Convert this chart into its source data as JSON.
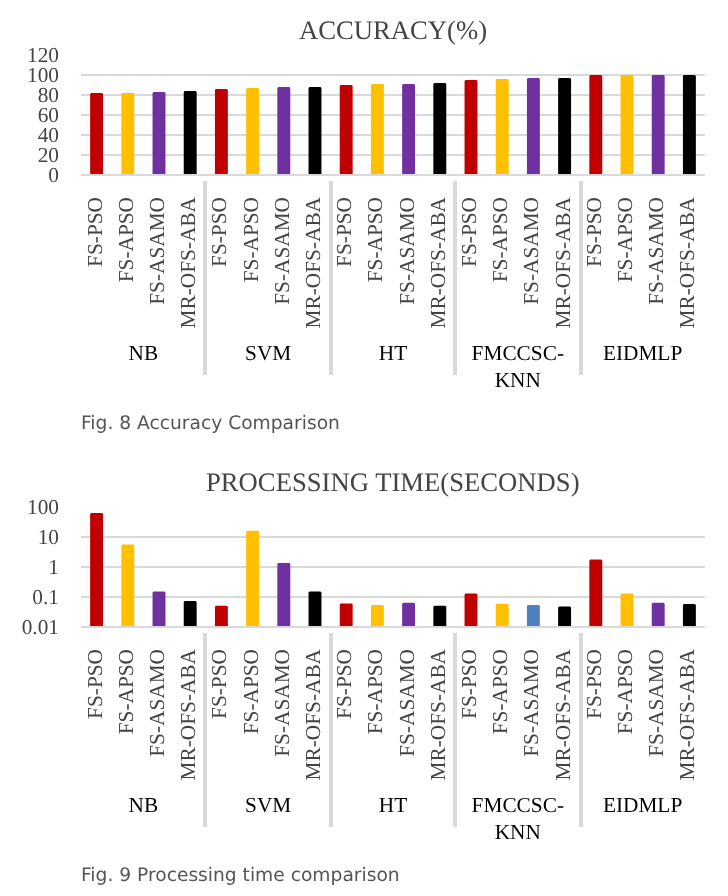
{
  "chart_data": [
    {
      "type": "bar",
      "title": "ACCURACY(%)",
      "categories": [
        "FS-PSO",
        "FS-APSO",
        "FS-ASAMO",
        "MR-OFS-ABA",
        "FS-PSO",
        "FS-APSO",
        "FS-ASAMO",
        "MR-OFS-ABA",
        "FS-PSO",
        "FS-APSO",
        "FS-ASAMO",
        "MR-OFS-ABA",
        "FS-PSO",
        "FS-APSO",
        "FS-ASAMO",
        "MR-OFS-ABA",
        "FS-PSO",
        "FS-APSO",
        "FS-ASAMO",
        "MR-OFS-ABA"
      ],
      "values": [
        81,
        81,
        82,
        83,
        85,
        86,
        87,
        87,
        89,
        90,
        90,
        91,
        94,
        95,
        96,
        96,
        99,
        99,
        99,
        99
      ],
      "colors": [
        "#c00000",
        "#ffc000",
        "#7030a0",
        "#000000",
        "#c00000",
        "#ffc000",
        "#7030a0",
        "#000000",
        "#c00000",
        "#ffc000",
        "#7030a0",
        "#000000",
        "#c00000",
        "#ffc000",
        "#7030a0",
        "#000000",
        "#c00000",
        "#ffc000",
        "#7030a0",
        "#000000"
      ],
      "ylim": [
        0,
        120
      ],
      "yticks": [
        0,
        20,
        40,
        60,
        80,
        100,
        120
      ],
      "grid": "y",
      "annotations": [
        "NB",
        "SVM",
        "HT",
        "FMCCSC-KNN",
        "EIDMLP",
        "Fig. 8 Accuracy Comparison"
      ]
    },
    {
      "type": "bar",
      "title": "PROCESSING TIME(SECONDS)",
      "categories": [
        "FS-PSO",
        "FS-APSO",
        "FS-ASAMO",
        "MR-OFS-ABA",
        "FS-PSO",
        "FS-APSO",
        "FS-ASAMO",
        "MR-OFS-ABA",
        "FS-PSO",
        "FS-APSO",
        "FS-ASAMO",
        "MR-OFS-ABA",
        "FS-PSO",
        "FS-APSO",
        "FS-ASAMO",
        "MR-OFS-ABA",
        "FS-PSO",
        "FS-APSO",
        "FS-ASAMO",
        "MR-OFS-ABA"
      ],
      "values": [
        58,
        5.2,
        0.14,
        0.068,
        0.047,
        15,
        1.25,
        0.14,
        0.056,
        0.05,
        0.06,
        0.047,
        0.12,
        0.055,
        0.05,
        0.045,
        1.65,
        0.12,
        0.06,
        0.054
      ],
      "colors": [
        "#c00000",
        "#ffc000",
        "#7030a0",
        "#000000",
        "#c00000",
        "#ffc000",
        "#7030a0",
        "#000000",
        "#c00000",
        "#ffc000",
        "#7030a0",
        "#000000",
        "#c00000",
        "#ffc000",
        "#4f81bd",
        "#000000",
        "#c00000",
        "#ffc000",
        "#7030a0",
        "#000000"
      ],
      "log": true,
      "ylim": [
        0.01,
        100
      ],
      "yticks": [
        0.01,
        0.1,
        1,
        10,
        100
      ],
      "grid": "y",
      "annotations": [
        "NB",
        "SVM",
        "HT",
        "FMCCSC-KNN",
        "EIDMLP",
        "Fig. 9 Processing time comparison"
      ]
    }
  ]
}
